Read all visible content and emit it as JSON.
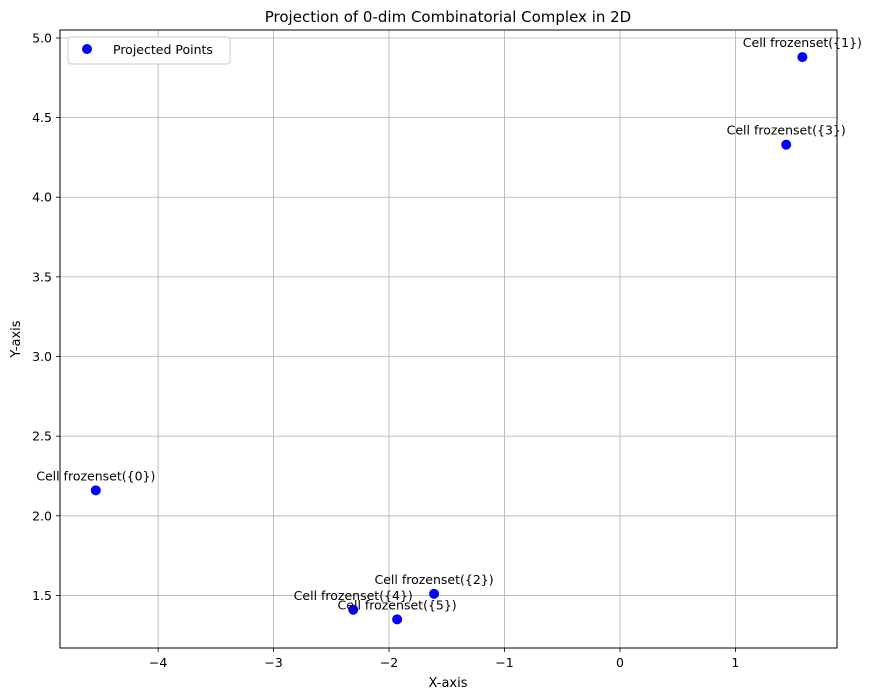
{
  "chart_data": {
    "type": "scatter",
    "title": "Projection of 0-dim Combinatorial Complex in 2D",
    "xlabel": "X-axis",
    "ylabel": "Y-axis",
    "xlim": [
      -4.85,
      1.88
    ],
    "ylim": [
      1.17,
      5.05
    ],
    "xticks": [
      -4,
      -3,
      -2,
      -1,
      0,
      1
    ],
    "xtick_labels": [
      "−4",
      "−3",
      "−2",
      "−1",
      "0",
      "1"
    ],
    "yticks": [
      1.5,
      2.0,
      2.5,
      3.0,
      3.5,
      4.0,
      4.5,
      5.0
    ],
    "ytick_labels": [
      "1.5",
      "2.0",
      "2.5",
      "3.0",
      "3.5",
      "4.0",
      "4.5",
      "5.0"
    ],
    "grid": true,
    "legend": {
      "placement": "top-left",
      "entries": [
        "Projected Points"
      ]
    },
    "series": [
      {
        "name": "Projected Points",
        "color": "#0000ff",
        "points": [
          {
            "x": -4.54,
            "y": 2.16,
            "label": "Cell frozenset({0})"
          },
          {
            "x": 1.58,
            "y": 4.88,
            "label": "Cell frozenset({1})"
          },
          {
            "x": -1.61,
            "y": 1.51,
            "label": "Cell frozenset({2})"
          },
          {
            "x": 1.44,
            "y": 4.33,
            "label": "Cell frozenset({3})"
          },
          {
            "x": -2.31,
            "y": 1.41,
            "label": "Cell frozenset({4})"
          },
          {
            "x": -1.93,
            "y": 1.35,
            "label": "Cell frozenset({5})"
          }
        ]
      }
    ]
  }
}
